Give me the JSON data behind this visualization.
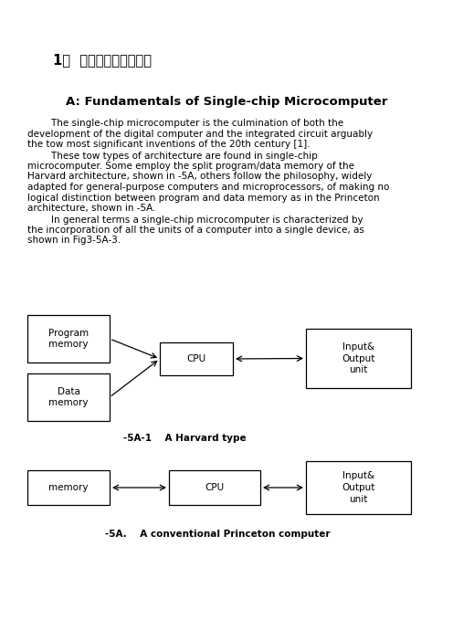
{
  "bg_color": "#ffffff",
  "title_zh": "1、  外文原文（复印件）",
  "section_title": "A: Fundamentals of Single-chip Microcomputer",
  "para1_lines": [
    "        The single-chip microcomputer is the culmination of both the",
    "development of the digital computer and the integrated circuit arguably",
    "the tow most significant inventions of the 20th century [1]."
  ],
  "para2_lines": [
    "        These tow types of architecture are found in single-chip",
    "microcomputer. Some employ the split program/data memory of the",
    "Harvard architecture, shown in -5A, others follow the philosophy, widely",
    "adapted for general-purpose computers and microprocessors, of making no",
    "logical distinction between program and data memory as in the Princeton",
    "architecture, shown in -5A."
  ],
  "para3_lines": [
    "        In general terms a single-chip microcomputer is characterized by",
    "the incorporation of all the units of a computer into a single device, as",
    "shown in Fig3-5A-3."
  ],
  "diag1_caption": "-5A-1    A Harvard type",
  "diag2_caption": "-5A.    A conventional Princeton computer",
  "text_fontsize": 7.5,
  "text_lh": 11.5
}
